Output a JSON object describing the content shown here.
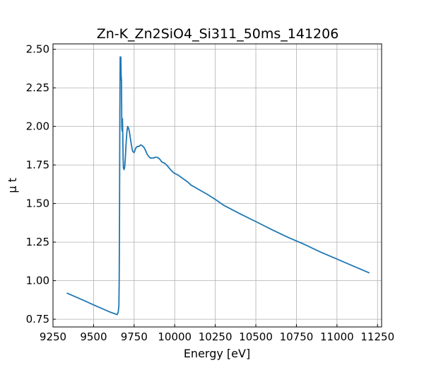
{
  "chart_data": {
    "type": "line",
    "title": "Zn-K_Zn2SiO4_Si311_50ms_141206",
    "xlabel": "Energy [eV]",
    "ylabel": "μ t",
    "xlim": [
      9250,
      11275
    ],
    "ylim": [
      0.7,
      2.535
    ],
    "x_ticks": [
      9250,
      9500,
      9750,
      10000,
      10250,
      10500,
      10750,
      11000,
      11250
    ],
    "y_ticks": [
      0.75,
      1.0,
      1.25,
      1.5,
      1.75,
      2.0,
      2.25,
      2.5
    ],
    "x_tick_labels": [
      "9250",
      "9500",
      "9750",
      "10000",
      "10250",
      "10500",
      "10750",
      "11000",
      "11250"
    ],
    "y_tick_labels": [
      "0.75",
      "1.00",
      "1.25",
      "1.50",
      "1.75",
      "2.00",
      "2.25",
      "2.50"
    ],
    "grid": true,
    "series_color": "#1f77b4",
    "series": [
      {
        "x": [
          9335,
          9400,
          9450,
          9500,
          9550,
          9600,
          9630,
          9645,
          9652,
          9656,
          9658,
          9660,
          9662,
          9664,
          9666,
          9668,
          9670,
          9672,
          9674,
          9676,
          9678,
          9680,
          9682,
          9684,
          9688,
          9692,
          9696,
          9700,
          9705,
          9710,
          9715,
          9720,
          9730,
          9740,
          9750,
          9760,
          9770,
          9780,
          9790,
          9800,
          9810,
          9820,
          9830,
          9840,
          9850,
          9860,
          9870,
          9880,
          9890,
          9900,
          9910,
          9920,
          9930,
          9940,
          9950,
          9960,
          9970,
          9980,
          9990,
          10000,
          10020,
          10040,
          10060,
          10080,
          10100,
          10150,
          10200,
          10250,
          10300,
          10400,
          10500,
          10600,
          10700,
          10800,
          10900,
          11000,
          11100,
          11200
        ],
        "y": [
          0.92,
          0.89,
          0.867,
          0.843,
          0.82,
          0.797,
          0.786,
          0.78,
          0.795,
          0.84,
          1.0,
          1.45,
          2.1,
          2.45,
          2.3,
          2.45,
          2.33,
          2.3,
          2.0,
          1.97,
          2.05,
          1.95,
          1.8,
          1.73,
          1.72,
          1.74,
          1.8,
          1.88,
          1.96,
          2.0,
          1.99,
          1.97,
          1.9,
          1.84,
          1.83,
          1.86,
          1.87,
          1.87,
          1.88,
          1.875,
          1.865,
          1.845,
          1.82,
          1.805,
          1.795,
          1.795,
          1.795,
          1.8,
          1.8,
          1.795,
          1.785,
          1.77,
          1.765,
          1.76,
          1.75,
          1.738,
          1.725,
          1.713,
          1.703,
          1.695,
          1.685,
          1.67,
          1.655,
          1.64,
          1.62,
          1.59,
          1.56,
          1.527,
          1.49,
          1.435,
          1.383,
          1.33,
          1.28,
          1.235,
          1.185,
          1.14,
          1.095,
          1.05
        ]
      }
    ]
  }
}
